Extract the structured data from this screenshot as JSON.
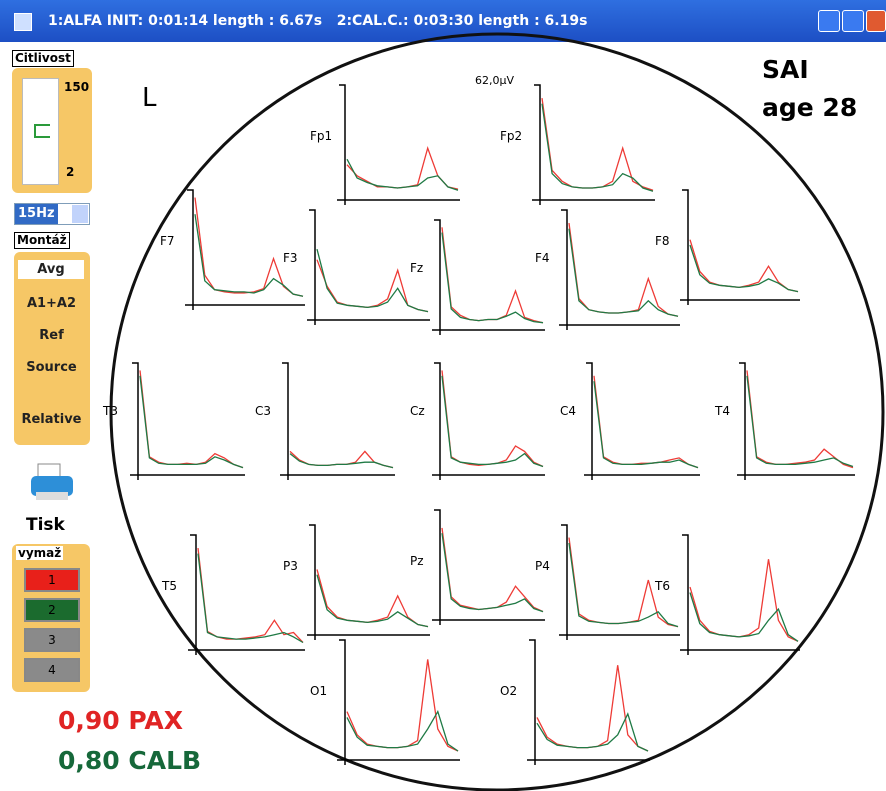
{
  "window": {
    "title": "1:ALFA INIT: 0:01:14 length : 6.67s   2:CAL.C.: 0:03:30 length : 6.19s"
  },
  "sidebar": {
    "sensitivity_label": "Citlivost",
    "sensitivity_max": "150",
    "sensitivity_min": "2",
    "filter": "15Hz",
    "montage_label": "Montáž",
    "montages": [
      "Avg",
      "A1+A2",
      "Ref",
      "Source",
      "Relative"
    ],
    "print": "Tisk",
    "erase_label": "vymaž",
    "erase_buttons": [
      "1",
      "2",
      "3",
      "4"
    ]
  },
  "legend": [
    {
      "text": "0,90 PAX",
      "color": "#e02424"
    },
    {
      "text": "0,80 CALB",
      "color": "#16683a"
    }
  ],
  "header": {
    "subject": "SAI",
    "age": "age 28",
    "side": "L",
    "scale": "62,0µV"
  },
  "chart_data": {
    "type": "line",
    "ylim": [
      0,
      100
    ],
    "series_colors": [
      "#ee3b36",
      "#1f7a45"
    ],
    "panels": [
      {
        "name": "Fp1",
        "series": [
          {
            "values": [
              30,
              20,
              15,
              10,
              10,
              9,
              10,
              12,
              45,
              20,
              10,
              8
            ]
          },
          {
            "values": [
              35,
              18,
              14,
              11,
              10,
              9,
              10,
              11,
              18,
              20,
              10,
              7
            ]
          }
        ]
      },
      {
        "name": "Fp2",
        "series": [
          {
            "values": [
              90,
              25,
              15,
              10,
              9,
              9,
              10,
              15,
              45,
              15,
              10,
              7
            ]
          },
          {
            "values": [
              85,
              22,
              13,
              10,
              9,
              9,
              10,
              12,
              22,
              18,
              9,
              6
            ]
          }
        ]
      },
      {
        "name": "F7",
        "series": [
          {
            "values": [
              95,
              25,
              12,
              10,
              9,
              9,
              10,
              13,
              40,
              15,
              8,
              6
            ]
          },
          {
            "values": [
              80,
              20,
              12,
              11,
              10,
              10,
              9,
              12,
              22,
              16,
              8,
              6
            ]
          }
        ]
      },
      {
        "name": "F3",
        "series": [
          {
            "values": [
              55,
              30,
              15,
              12,
              11,
              10,
              12,
              18,
              45,
              12,
              8,
              6
            ]
          },
          {
            "values": [
              65,
              28,
              14,
              12,
              11,
              10,
              11,
              15,
              28,
              12,
              8,
              6
            ]
          }
        ]
      },
      {
        "name": "Fz",
        "series": [
          {
            "values": [
              95,
              20,
              12,
              8,
              7,
              8,
              8,
              12,
              35,
              10,
              7,
              5
            ]
          },
          {
            "values": [
              90,
              18,
              10,
              8,
              7,
              8,
              8,
              11,
              15,
              9,
              6,
              5
            ]
          }
        ]
      },
      {
        "name": "F4",
        "series": [
          {
            "values": [
              90,
              22,
              12,
              10,
              9,
              9,
              10,
              12,
              40,
              15,
              8,
              6
            ]
          },
          {
            "values": [
              85,
              20,
              12,
              10,
              9,
              9,
              10,
              11,
              20,
              12,
              8,
              6
            ]
          }
        ]
      },
      {
        "name": "F8",
        "series": [
          {
            "values": [
              55,
              25,
              15,
              12,
              11,
              10,
              12,
              15,
              30,
              15,
              8,
              6
            ]
          },
          {
            "values": [
              50,
              22,
              14,
              12,
              11,
              10,
              11,
              13,
              18,
              14,
              8,
              6
            ]
          }
        ]
      },
      {
        "name": "T3",
        "series": [
          {
            "values": [
              95,
              15,
              10,
              8,
              8,
              9,
              8,
              10,
              18,
              14,
              8,
              5
            ]
          },
          {
            "values": [
              90,
              14,
              9,
              8,
              8,
              8,
              8,
              9,
              15,
              12,
              8,
              5
            ]
          }
        ]
      },
      {
        "name": "C3",
        "series": [
          {
            "values": [
              20,
              12,
              8,
              7,
              7,
              8,
              8,
              10,
              20,
              10,
              7,
              5
            ]
          },
          {
            "values": [
              18,
              11,
              8,
              7,
              7,
              8,
              8,
              9,
              10,
              10,
              7,
              5
            ]
          }
        ]
      },
      {
        "name": "Cz",
        "series": [
          {
            "values": [
              95,
              15,
              10,
              8,
              7,
              8,
              9,
              12,
              25,
              20,
              10,
              6
            ]
          },
          {
            "values": [
              90,
              14,
              10,
              9,
              8,
              8,
              9,
              10,
              12,
              18,
              9,
              6
            ]
          }
        ]
      },
      {
        "name": "C4",
        "series": [
          {
            "values": [
              90,
              15,
              10,
              8,
              8,
              9,
              9,
              10,
              12,
              14,
              8,
              5
            ]
          },
          {
            "values": [
              85,
              14,
              9,
              8,
              8,
              8,
              9,
              10,
              10,
              12,
              8,
              5
            ]
          }
        ]
      },
      {
        "name": "T4",
        "series": [
          {
            "values": [
              95,
              15,
              10,
              8,
              8,
              9,
              10,
              12,
              22,
              15,
              8,
              5
            ]
          },
          {
            "values": [
              90,
              14,
              9,
              8,
              8,
              8,
              9,
              10,
              12,
              14,
              9,
              6
            ]
          }
        ]
      },
      {
        "name": "T5",
        "series": [
          {
            "values": [
              90,
              15,
              10,
              8,
              8,
              9,
              10,
              12,
              25,
              12,
              14,
              5
            ]
          },
          {
            "values": [
              85,
              14,
              10,
              9,
              8,
              8,
              9,
              10,
              12,
              14,
              10,
              5
            ]
          }
        ]
      },
      {
        "name": "P3",
        "series": [
          {
            "values": [
              60,
              25,
              15,
              12,
              11,
              10,
              12,
              15,
              35,
              15,
              8,
              6
            ]
          },
          {
            "values": [
              55,
              22,
              14,
              12,
              11,
              10,
              11,
              13,
              20,
              14,
              8,
              6
            ]
          }
        ]
      },
      {
        "name": "Pz",
        "series": [
          {
            "values": [
              85,
              20,
              12,
              10,
              8,
              9,
              10,
              15,
              30,
              20,
              10,
              6
            ]
          },
          {
            "values": [
              80,
              18,
              11,
              9,
              8,
              9,
              10,
              12,
              14,
              18,
              9,
              6
            ]
          }
        ]
      },
      {
        "name": "P4",
        "series": [
          {
            "values": [
              90,
              18,
              12,
              10,
              9,
              9,
              10,
              12,
              50,
              15,
              8,
              6
            ]
          },
          {
            "values": [
              85,
              16,
              11,
              10,
              9,
              9,
              10,
              11,
              15,
              20,
              9,
              6
            ]
          }
        ]
      },
      {
        "name": "T6",
        "series": [
          {
            "values": [
              55,
              25,
              15,
              12,
              11,
              10,
              12,
              18,
              80,
              25,
              10,
              6
            ]
          },
          {
            "values": [
              50,
              22,
              14,
              12,
              11,
              10,
              11,
              13,
              25,
              35,
              12,
              6
            ]
          }
        ]
      },
      {
        "name": "O1",
        "series": [
          {
            "values": [
              40,
              20,
              12,
              10,
              9,
              9,
              10,
              15,
              85,
              25,
              10,
              6
            ]
          },
          {
            "values": [
              35,
              18,
              11,
              10,
              9,
              9,
              10,
              12,
              25,
              40,
              12,
              6
            ]
          }
        ]
      },
      {
        "name": "O2",
        "series": [
          {
            "values": [
              35,
              18,
              12,
              10,
              9,
              9,
              10,
              15,
              80,
              20,
              10,
              6
            ]
          },
          {
            "values": [
              30,
              16,
              11,
              10,
              9,
              9,
              10,
              12,
              20,
              38,
              10,
              6
            ]
          }
        ]
      }
    ]
  }
}
